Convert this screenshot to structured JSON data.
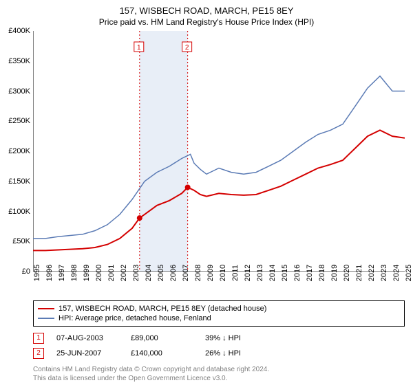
{
  "title": "157, WISBECH ROAD, MARCH, PE15 8EY",
  "subtitle": "Price paid vs. HM Land Registry's House Price Index (HPI)",
  "chart": {
    "type": "line",
    "background_color": "#ffffff",
    "ylim": [
      0,
      400000
    ],
    "ytick_step": 50000,
    "yticks": [
      "£0",
      "£50K",
      "£100K",
      "£150K",
      "£200K",
      "£250K",
      "£300K",
      "£350K",
      "£400K"
    ],
    "xlim": [
      1995,
      2025
    ],
    "xticks": [
      1995,
      1996,
      1997,
      1998,
      1999,
      2000,
      2001,
      2002,
      2003,
      2004,
      2005,
      2006,
      2007,
      2008,
      2009,
      2010,
      2011,
      2012,
      2013,
      2014,
      2015,
      2016,
      2017,
      2018,
      2019,
      2020,
      2021,
      2022,
      2023,
      2024,
      2025
    ],
    "band_color": "#e8eef7",
    "band_start": 2003.6,
    "band_end": 2007.48,
    "series": [
      {
        "name": "property",
        "label": "157, WISBECH ROAD, MARCH, PE15 8EY (detached house)",
        "color": "#d40000",
        "width": 2,
        "data": [
          [
            1995,
            35000
          ],
          [
            1996,
            35000
          ],
          [
            1997,
            36000
          ],
          [
            1998,
            37000
          ],
          [
            1999,
            38000
          ],
          [
            2000,
            40000
          ],
          [
            2001,
            45000
          ],
          [
            2002,
            55000
          ],
          [
            2003,
            72000
          ],
          [
            2003.6,
            89000
          ],
          [
            2004,
            95000
          ],
          [
            2005,
            110000
          ],
          [
            2006,
            118000
          ],
          [
            2007,
            130000
          ],
          [
            2007.48,
            140000
          ],
          [
            2008,
            135000
          ],
          [
            2008.5,
            128000
          ],
          [
            2009,
            125000
          ],
          [
            2010,
            130000
          ],
          [
            2011,
            128000
          ],
          [
            2012,
            127000
          ],
          [
            2013,
            128000
          ],
          [
            2014,
            135000
          ],
          [
            2015,
            142000
          ],
          [
            2016,
            152000
          ],
          [
            2017,
            162000
          ],
          [
            2018,
            172000
          ],
          [
            2019,
            178000
          ],
          [
            2020,
            185000
          ],
          [
            2021,
            205000
          ],
          [
            2022,
            225000
          ],
          [
            2023,
            235000
          ],
          [
            2024,
            225000
          ],
          [
            2025,
            222000
          ]
        ]
      },
      {
        "name": "hpi",
        "label": "HPI: Average price, detached house, Fenland",
        "color": "#5b7bb5",
        "width": 1.5,
        "data": [
          [
            1995,
            55000
          ],
          [
            1996,
            55000
          ],
          [
            1997,
            58000
          ],
          [
            1998,
            60000
          ],
          [
            1999,
            62000
          ],
          [
            2000,
            68000
          ],
          [
            2001,
            78000
          ],
          [
            2002,
            95000
          ],
          [
            2003,
            120000
          ],
          [
            2004,
            150000
          ],
          [
            2005,
            165000
          ],
          [
            2006,
            175000
          ],
          [
            2007,
            188000
          ],
          [
            2007.7,
            195000
          ],
          [
            2008,
            180000
          ],
          [
            2008.5,
            170000
          ],
          [
            2009,
            162000
          ],
          [
            2010,
            172000
          ],
          [
            2011,
            165000
          ],
          [
            2012,
            162000
          ],
          [
            2013,
            165000
          ],
          [
            2014,
            175000
          ],
          [
            2015,
            185000
          ],
          [
            2016,
            200000
          ],
          [
            2017,
            215000
          ],
          [
            2018,
            228000
          ],
          [
            2019,
            235000
          ],
          [
            2020,
            245000
          ],
          [
            2021,
            275000
          ],
          [
            2022,
            305000
          ],
          [
            2023,
            325000
          ],
          [
            2024,
            300000
          ],
          [
            2025,
            300000
          ]
        ]
      }
    ],
    "markers": [
      {
        "id": "1",
        "x": 2003.6,
        "y": 89000,
        "color": "#d40000",
        "line_color": "#d40000"
      },
      {
        "id": "2",
        "x": 2007.48,
        "y": 140000,
        "color": "#d40000",
        "line_color": "#d40000"
      }
    ]
  },
  "legend": {
    "rows": [
      {
        "color": "#d40000",
        "label": "157, WISBECH ROAD, MARCH, PE15 8EY (detached house)"
      },
      {
        "color": "#5b7bb5",
        "label": "HPI: Average price, detached house, Fenland"
      }
    ]
  },
  "marker_table": [
    {
      "id": "1",
      "color": "#d40000",
      "date": "07-AUG-2003",
      "price": "£89,000",
      "delta": "39% ↓ HPI"
    },
    {
      "id": "2",
      "color": "#d40000",
      "date": "25-JUN-2007",
      "price": "£140,000",
      "delta": "26% ↓ HPI"
    }
  ],
  "footer": {
    "line1": "Contains HM Land Registry data © Crown copyright and database right 2024.",
    "line2": "This data is licensed under the Open Government Licence v3.0."
  }
}
